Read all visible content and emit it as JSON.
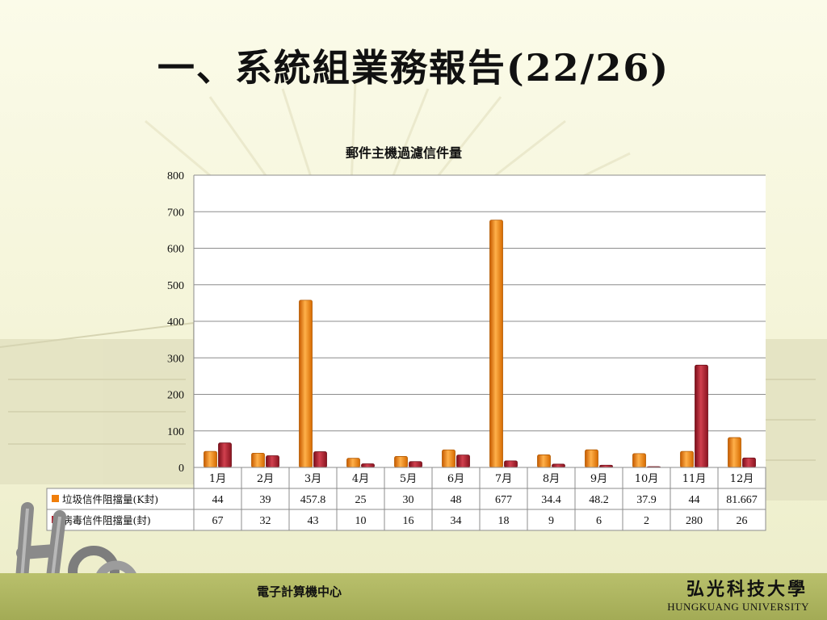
{
  "slide": {
    "title": "一、系統組業務報告(22/26)"
  },
  "chart_data": {
    "type": "bar",
    "title": "郵件主機過濾信件量",
    "categories": [
      "1月",
      "2月",
      "3月",
      "4月",
      "5月",
      "6月",
      "7月",
      "8月",
      "9月",
      "10月",
      "11月",
      "12月"
    ],
    "series": [
      {
        "name": "垃圾信件阻擋量(K封)",
        "color": "#f07e0a",
        "values": [
          44,
          39,
          457.8,
          25,
          30,
          48,
          677,
          34.4,
          48.2,
          37.9,
          44,
          81.667
        ],
        "labels": [
          "44",
          "39",
          "457.8",
          "25",
          "30",
          "48",
          "677",
          "34.4",
          "48.2",
          "37.9",
          "44",
          "81.667"
        ]
      },
      {
        "name": "病毒信件阻擋量(封)",
        "color": "#b01e2e",
        "values": [
          67,
          32,
          43,
          10,
          16,
          34,
          18,
          9,
          6,
          2,
          280,
          26
        ],
        "labels": [
          "67",
          "32",
          "43",
          "10",
          "16",
          "34",
          "18",
          "9",
          "6",
          "2",
          "280",
          "26"
        ]
      }
    ],
    "ylim": [
      0,
      800
    ],
    "yticks": [
      "0",
      "100",
      "200",
      "300",
      "400",
      "500",
      "600",
      "700",
      "800"
    ],
    "grid": true,
    "data_table": true
  },
  "footer": {
    "center": "電子計算機中心",
    "school_cn": "弘光科技大學",
    "school_en": "HUNGKUANG UNIVERSITY"
  }
}
